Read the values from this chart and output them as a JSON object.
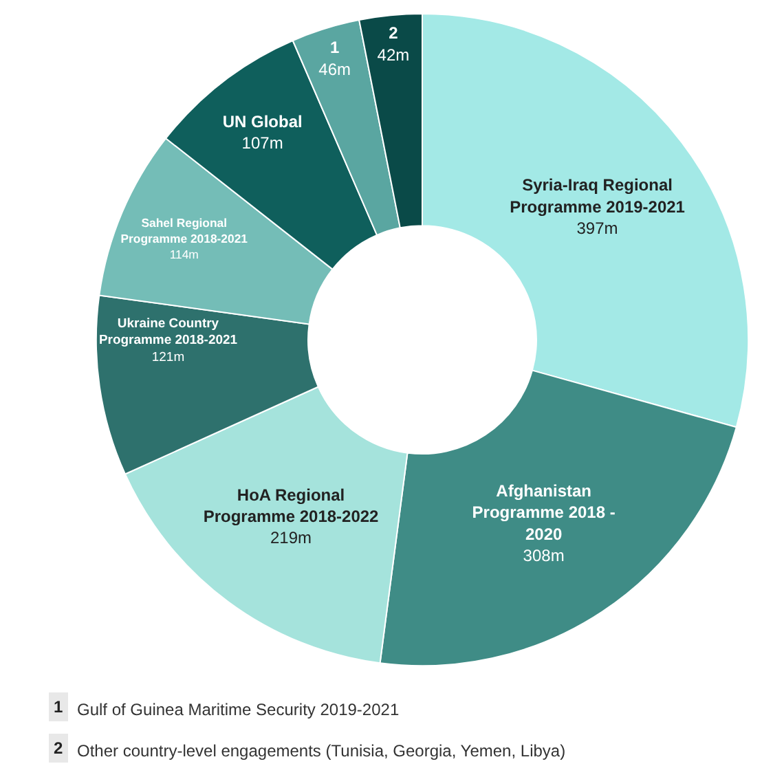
{
  "chart_data": {
    "type": "donut",
    "categories": [
      "Syria-Iraq Regional Programme 2019-2021",
      "Afghanistan Programme 2018 - 2020",
      "HoA Regional Programme 2018-2022",
      "Ukraine Country Programme 2018-2021",
      "Sahel Regional Programme 2018-2021",
      "UN Global",
      "1",
      "2"
    ],
    "values": [
      397,
      308,
      219,
      121,
      114,
      107,
      46,
      42
    ],
    "value_labels": [
      "397m",
      "308m",
      "219m",
      "121m",
      "114m",
      "107m",
      "46m",
      "42m"
    ],
    "colors": [
      "#a3e9e6",
      "#3f8c86",
      "#a5e3dc",
      "#2e716d",
      "#74bdb7",
      "#0f5f5c",
      "#5aa6a1",
      "#0a4a48"
    ],
    "annotations": [
      "1 Gulf of Guinea Maritime Security 2019-2021",
      "2 Other country-level engagements (Tunisia, Georgia, Yemen, Libya)"
    ],
    "legend": false
  }
}
